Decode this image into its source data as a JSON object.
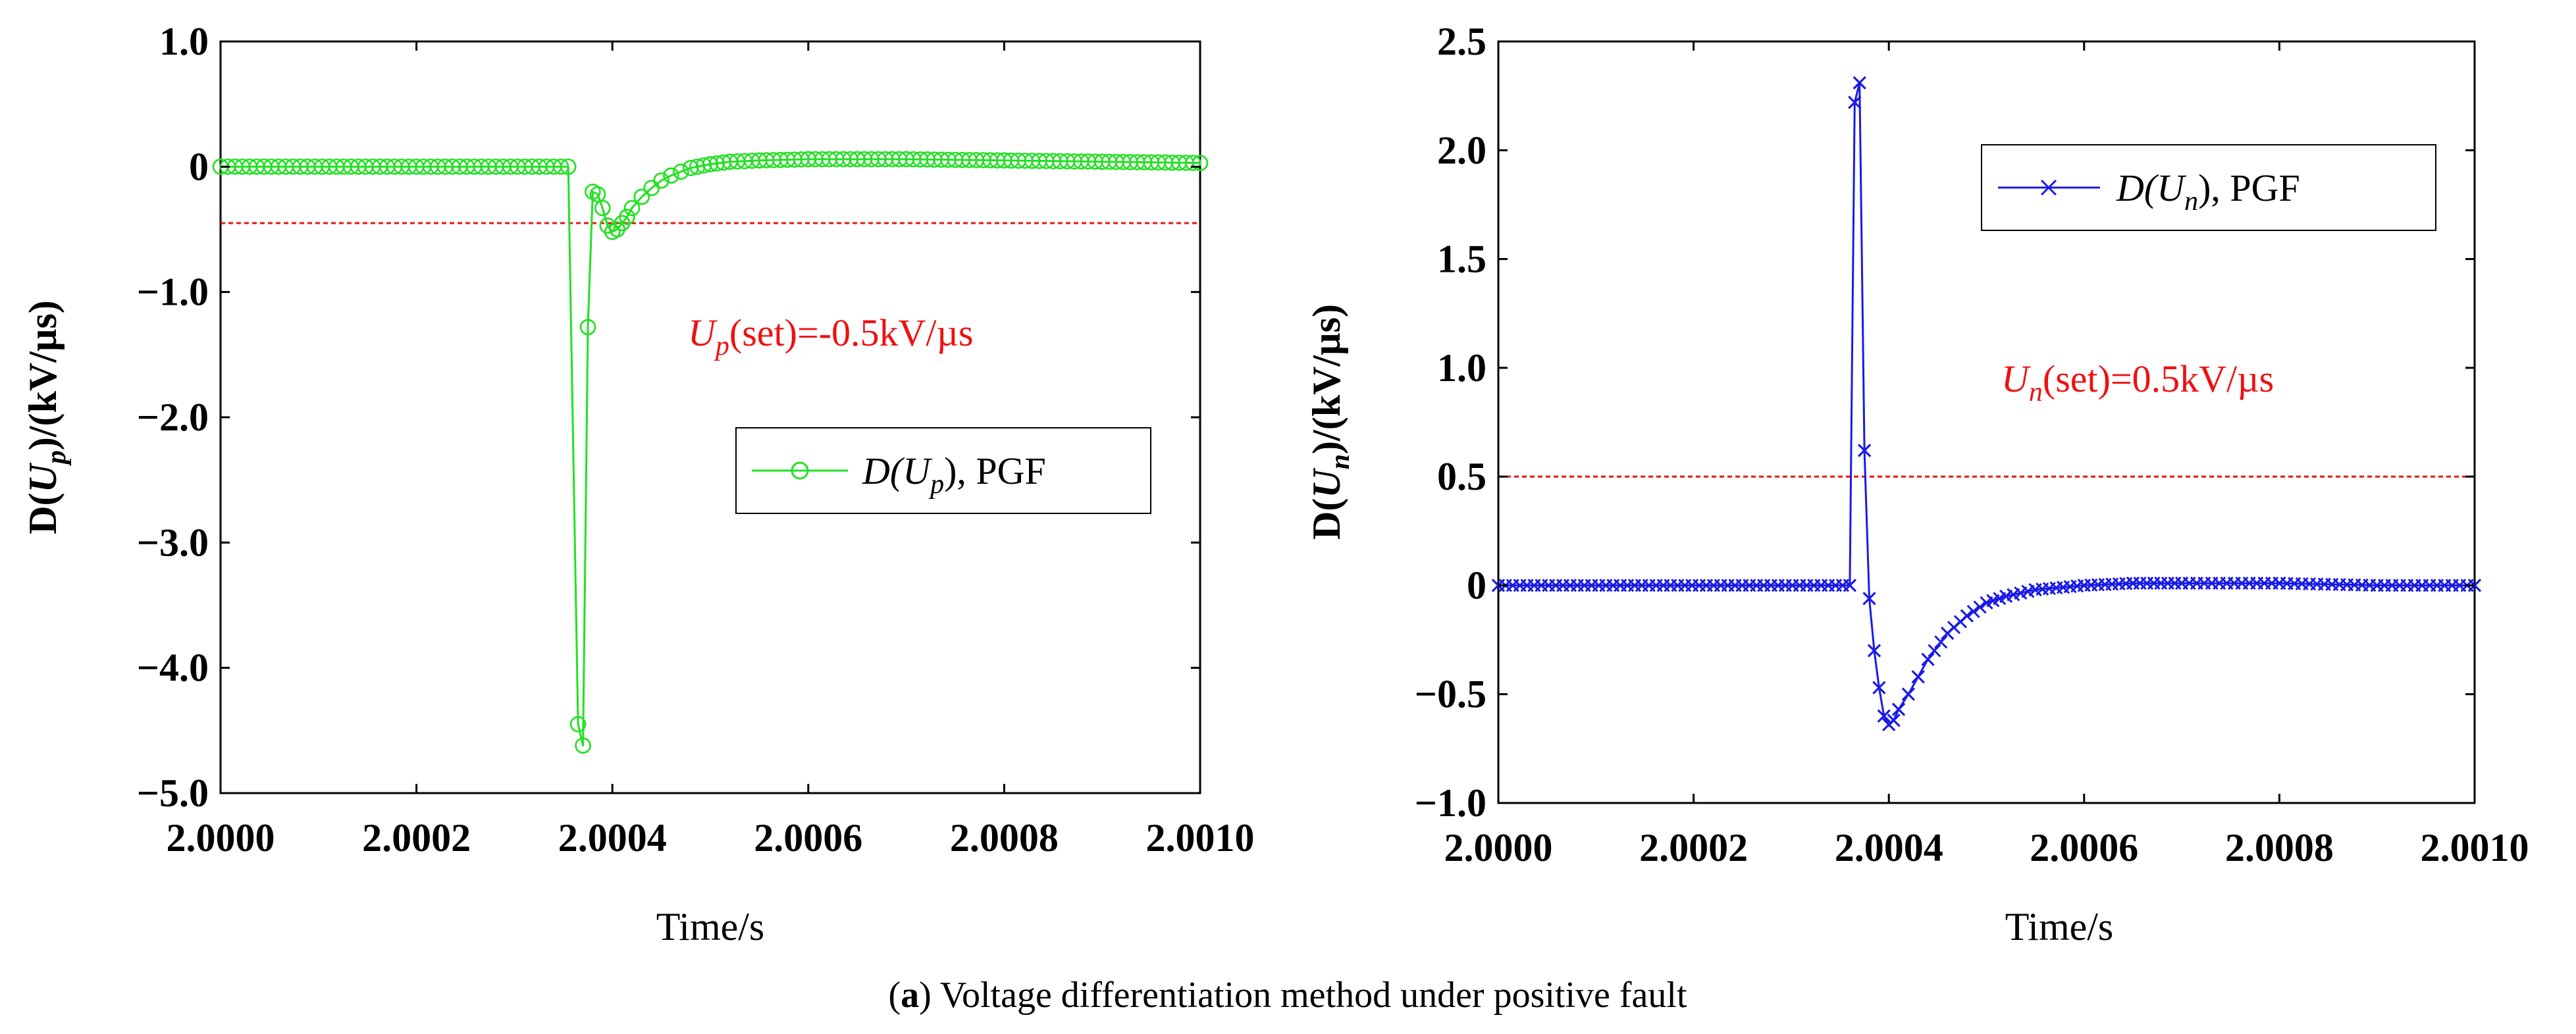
{
  "caption": {
    "label": "a",
    "text": " Voltage differentiation method under positive fault"
  },
  "chart_data": [
    {
      "type": "line",
      "xlabel": "Time/s",
      "ylabel": {
        "prefix": "D(",
        "var": "U",
        "sub": "p",
        "suffix": ")/(kV/µs)"
      },
      "xlim": [
        2.0,
        2.001
      ],
      "ylim": [
        -5.0,
        1.0
      ],
      "xticks": [
        "2.0000",
        "2.0002",
        "2.0004",
        "2.0006",
        "2.0008",
        "2.0010"
      ],
      "yticks": [
        {
          "v": 1.0,
          "label": "1.0"
        },
        {
          "v": 0,
          "label": "0"
        },
        {
          "v": -1.0,
          "label": "−1.0"
        },
        {
          "v": -2.0,
          "label": "−2.0"
        },
        {
          "v": -3.0,
          "label": "−3.0"
        },
        {
          "v": -4.0,
          "label": "−4.0"
        },
        {
          "v": -5.0,
          "label": "−5.0"
        }
      ],
      "threshold": -0.45,
      "series": [
        {
          "name": "D(Up), PGF",
          "color": "#22e022",
          "marker": "circle",
          "x": [
            2.0,
            2.000355,
            2.000365,
            2.00037,
            2.000375,
            2.00038,
            2.000385,
            2.00039,
            2.000395,
            2.0004,
            2.000405,
            2.00041,
            2.000415,
            2.00042,
            2.00043,
            2.00044,
            2.00045,
            2.00046,
            2.00047,
            2.00048,
            2.0005,
            2.00052,
            2.00055,
            2.0006,
            2.00065,
            2.0007,
            2.0008,
            2.0009,
            2.001
          ],
          "y": [
            0,
            0,
            -4.45,
            -4.62,
            -1.28,
            -0.2,
            -0.22,
            -0.33,
            -0.47,
            -0.52,
            -0.5,
            -0.45,
            -0.4,
            -0.33,
            -0.24,
            -0.17,
            -0.11,
            -0.07,
            -0.04,
            -0.01,
            0.02,
            0.04,
            0.05,
            0.06,
            0.06,
            0.06,
            0.05,
            0.04,
            0.03
          ]
        }
      ],
      "legend": {
        "prefix": "D(",
        "var": "U",
        "sub": "p",
        "suffix": "),  PGF"
      },
      "annotation": {
        "var": "U",
        "sub": "p",
        "text": "(set)=-0.5kV/µs",
        "color": "#ee1111"
      }
    },
    {
      "type": "line",
      "xlabel": "Time/s",
      "ylabel": {
        "prefix": "D(",
        "var": "U",
        "sub": "n",
        "suffix": ")/(kV/µs)"
      },
      "xlim": [
        2.0,
        2.001
      ],
      "ylim": [
        -1.0,
        2.5
      ],
      "xticks": [
        "2.0000",
        "2.0002",
        "2.0004",
        "2.0006",
        "2.0008",
        "2.0010"
      ],
      "yticks": [
        {
          "v": 2.5,
          "label": "2.5"
        },
        {
          "v": 2.0,
          "label": "2.0"
        },
        {
          "v": 1.5,
          "label": "1.5"
        },
        {
          "v": 1.0,
          "label": "1.0"
        },
        {
          "v": 0.5,
          "label": "0.5"
        },
        {
          "v": 0,
          "label": "0"
        },
        {
          "v": -0.5,
          "label": "−0.5"
        },
        {
          "v": -1.0,
          "label": "−1.0"
        }
      ],
      "threshold": 0.5,
      "series": [
        {
          "name": "D(Un), PGF",
          "color": "#1a1ae6",
          "marker": "x",
          "x": [
            2.0,
            2.00036,
            2.000365,
            2.00037,
            2.000375,
            2.00038,
            2.000385,
            2.00039,
            2.000395,
            2.0004,
            2.000405,
            2.00041,
            2.00042,
            2.00043,
            2.00044,
            2.00046,
            2.00048,
            2.0005,
            2.00052,
            2.00055,
            2.0006,
            2.00065,
            2.0007,
            2.0008,
            2.0009,
            2.001
          ],
          "y": [
            0,
            0,
            2.22,
            2.31,
            0.62,
            -0.06,
            -0.3,
            -0.47,
            -0.6,
            -0.64,
            -0.62,
            -0.57,
            -0.5,
            -0.42,
            -0.34,
            -0.22,
            -0.14,
            -0.08,
            -0.05,
            -0.02,
            0,
            0.01,
            0.01,
            0.01,
            0,
            0
          ]
        }
      ],
      "legend": {
        "prefix": "D(",
        "var": "U",
        "sub": "n",
        "suffix": "),  PGF"
      },
      "annotation": {
        "var": "U",
        "sub": "n",
        "text": "(set)=0.5kV/µs",
        "color": "#ee1111"
      }
    }
  ]
}
